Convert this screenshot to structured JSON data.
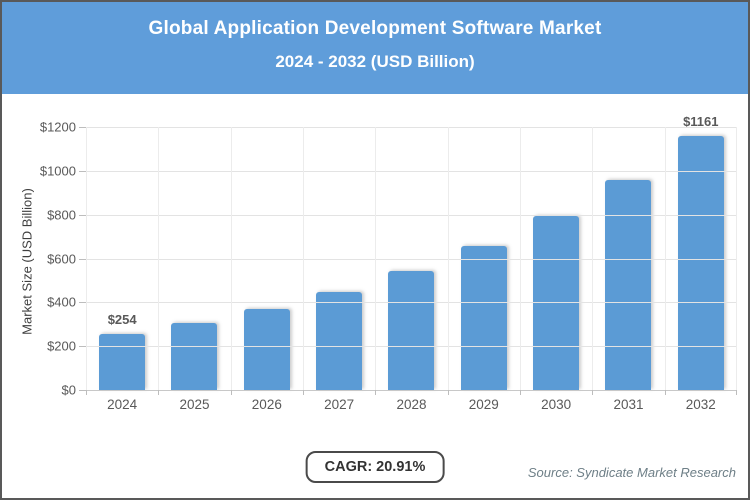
{
  "header": {
    "title_line1": "Global Application Development Software Market",
    "title_line2": "2024 - 2032 (USD Billion)",
    "bg_color": "#5f9dda",
    "text_color": "#ffffff"
  },
  "chart_data": {
    "type": "bar",
    "title": "Global Application Development Software Market 2024 - 2032 (USD Billion)",
    "categories": [
      "2024",
      "2025",
      "2026",
      "2027",
      "2028",
      "2029",
      "2030",
      "2031",
      "2032"
    ],
    "values": [
      254,
      307,
      371,
      449,
      543,
      656,
      794,
      960,
      1161
    ],
    "value_label_prefix": "$",
    "labeled_bar_indices": [
      0,
      8
    ],
    "labeled_bar_texts": [
      "$254",
      "$1161"
    ],
    "xlabel": "",
    "ylabel": "Market Size (USD Billion)",
    "ylim": [
      0,
      1200
    ],
    "ytick_step": 200,
    "ytick_labels": [
      "$0",
      "$200",
      "$400",
      "$600",
      "$800",
      "$1000",
      "$1200"
    ],
    "grid": true,
    "legend": false,
    "bar_color": "#5b9bd5"
  },
  "footer": {
    "cagr_label": "CAGR: 20.91%",
    "source": "Source: Syndicate Market Research"
  }
}
